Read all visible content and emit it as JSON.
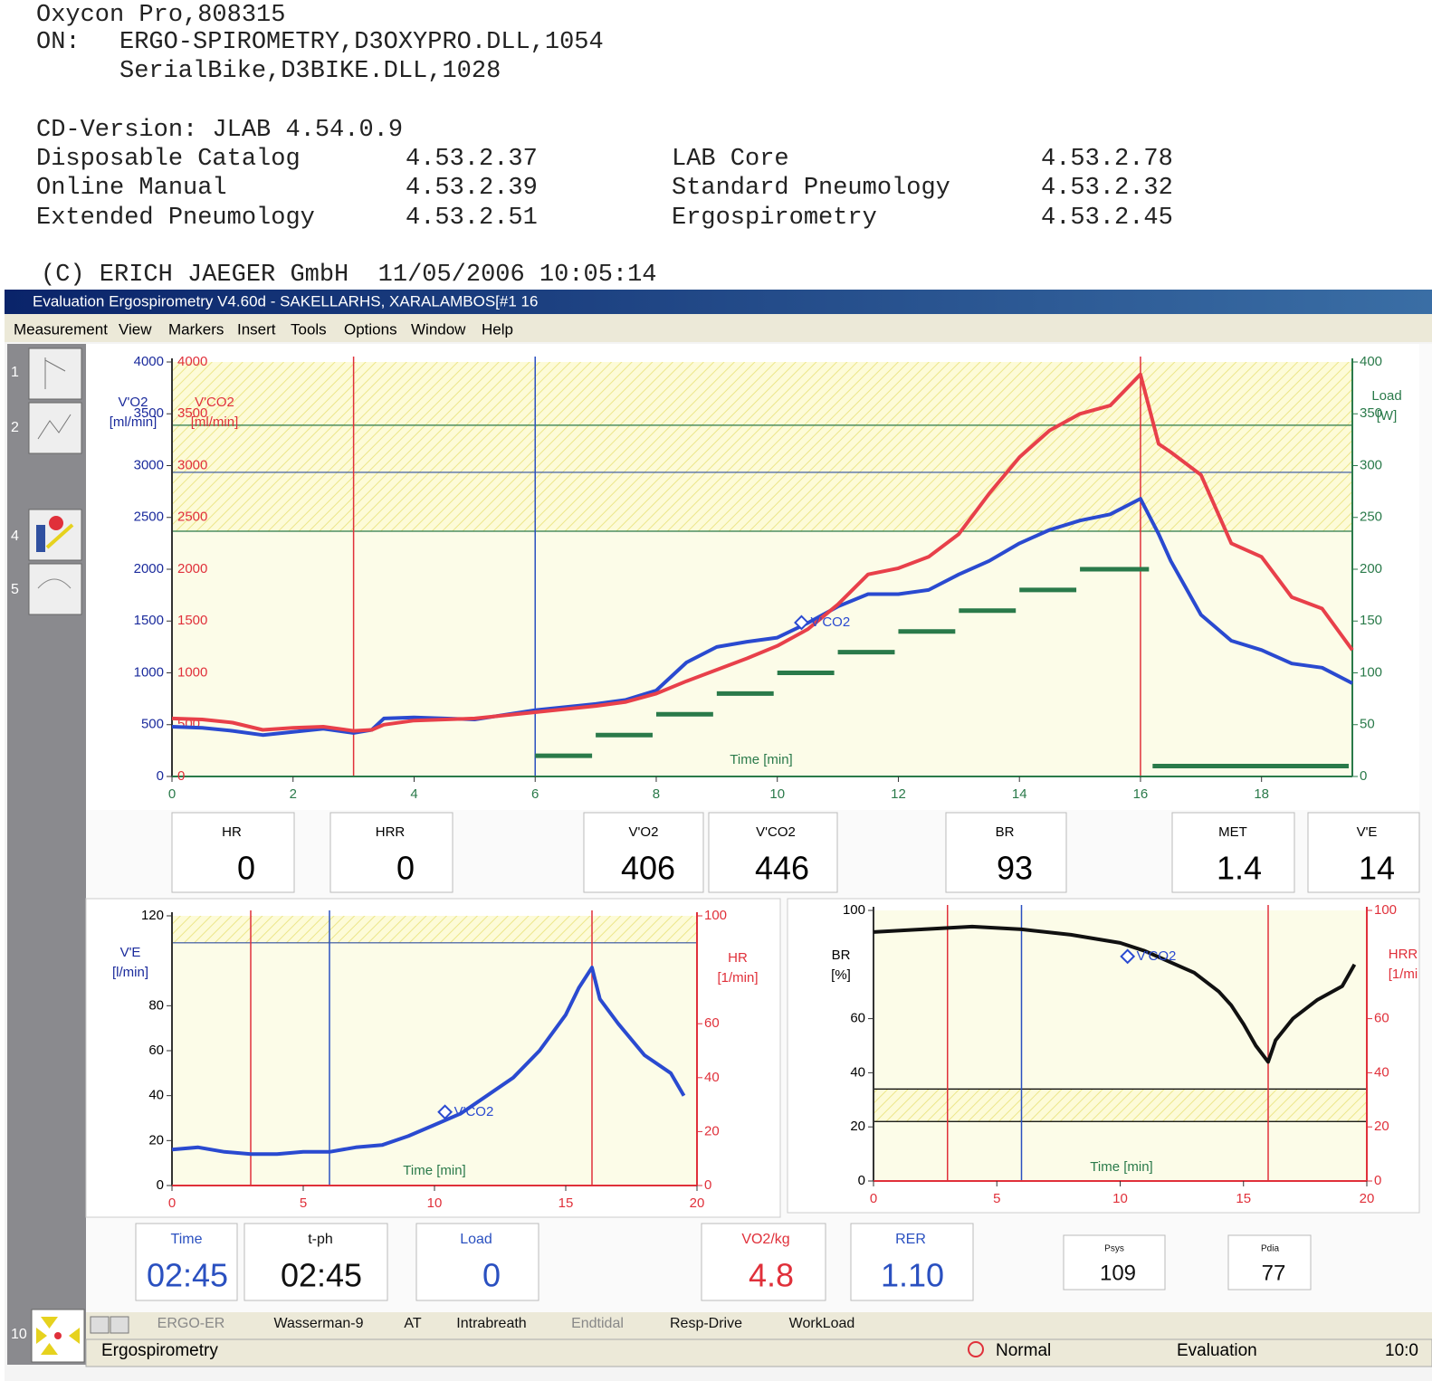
{
  "header": {
    "device": "Oxycon Pro,808315",
    "on_label": "ON:",
    "modules": [
      "ERGO-SPIROMETRY,D3OXYPRO.DLL,1054",
      "SerialBike,D3BIKE.DLL,1028"
    ],
    "cd_version": "CD-Version: JLAB 4.54.0.9",
    "versions": [
      [
        "Disposable Catalog",
        "4.53.2.37"
      ],
      [
        "Online Manual",
        "4.53.2.39"
      ],
      [
        "Extended Pneumology",
        "4.53.2.51"
      ],
      [
        "LAB Core",
        "4.53.2.78"
      ],
      [
        "Standard Pneumology",
        "4.53.2.32"
      ],
      [
        "Ergospirometry",
        "4.53.2.45"
      ]
    ],
    "copyright": "(C) ERICH JAEGER GmbH  11/05/2006 10:05:14"
  },
  "window": {
    "title": "Evaluation Ergospirometry  V4.60d - SAKELLARHS, XARALAMBOS[#1 16",
    "menu": [
      "Measurement",
      "View",
      "Markers",
      "Insert",
      "Tools",
      "Options",
      "Window",
      "Help"
    ]
  },
  "sidebar": [
    "1",
    "2",
    "4",
    "5",
    "10"
  ],
  "chart_data": [
    {
      "type": "line",
      "x_label": "Time [min]",
      "x_label_color": "#2a7a4a",
      "y_labels": [
        {
          "lines": [
            "V'O2",
            "[ml/min]"
          ],
          "color": "#1a2a9c"
        },
        {
          "lines": [
            "V'CO2",
            "[ml/min]"
          ],
          "color": "#e0303a"
        }
      ],
      "y2_label": {
        "lines": [
          "Load",
          "[W]"
        ],
        "color": "#2a7a4a"
      },
      "xlim": [
        0,
        19.5
      ],
      "xticks": [
        0,
        2,
        4,
        6,
        8,
        10,
        12,
        14,
        16,
        18
      ],
      "ylim": [
        0,
        4000
      ],
      "yticks": [
        0,
        500,
        1000,
        1500,
        2000,
        2500,
        3000,
        3500,
        4000
      ],
      "ytick_colors": [
        "#1a2a9c",
        "#e0303a"
      ],
      "y2lim": [
        0,
        400
      ],
      "y2ticks": [
        0,
        50,
        100,
        150,
        200,
        250,
        300,
        350,
        400
      ],
      "y2tick_color": "#2a7a4a",
      "band": [
        2367,
        4000
      ],
      "hlines": [
        {
          "value": 3390,
          "color": "#2a7a4a"
        },
        {
          "value": 2935,
          "color": "#3050a0"
        },
        {
          "value": 2367,
          "color": "#2a7a4a"
        }
      ],
      "vlines": [
        {
          "value": 3,
          "color": "#e0303a"
        },
        {
          "value": 6,
          "color": "#2a50c0"
        },
        {
          "value": 16,
          "color": "#e0303a"
        }
      ],
      "series": [
        {
          "color": "#2a4ad0",
          "x": [
            0,
            0.5,
            1,
            1.5,
            2,
            2.5,
            3,
            3.3,
            3.5,
            4,
            5,
            6,
            7,
            7.5,
            8,
            8.5,
            9,
            9.5,
            10,
            10.5,
            11,
            11.5,
            12,
            12.5,
            13,
            13.5,
            14,
            14.5,
            15,
            15.5,
            16,
            16.3,
            16.5,
            17,
            17.5,
            18,
            18.5,
            19,
            19.5
          ],
          "values": [
            480,
            470,
            440,
            400,
            430,
            460,
            420,
            450,
            560,
            570,
            550,
            640,
            700,
            740,
            830,
            1100,
            1250,
            1300,
            1340,
            1480,
            1640,
            1760,
            1760,
            1800,
            1950,
            2080,
            2250,
            2380,
            2470,
            2530,
            2680,
            2340,
            2080,
            1560,
            1310,
            1220,
            1090,
            1050,
            900
          ]
        },
        {
          "color": "#e8404a",
          "x": [
            0,
            0.5,
            1,
            1.5,
            2,
            2.5,
            3,
            3.3,
            3.5,
            4,
            5,
            6,
            7,
            7.5,
            8,
            8.5,
            9,
            9.5,
            10,
            10.5,
            11,
            11.5,
            12,
            12.5,
            13,
            13.5,
            14,
            14.5,
            15,
            15.5,
            16,
            16.3,
            16.5,
            17,
            17.5,
            18,
            18.5,
            19,
            19.5
          ],
          "values": [
            560,
            550,
            520,
            450,
            470,
            480,
            440,
            450,
            500,
            540,
            560,
            620,
            680,
            720,
            800,
            920,
            1030,
            1140,
            1260,
            1420,
            1660,
            1950,
            2010,
            2120,
            2340,
            2730,
            3080,
            3340,
            3500,
            3580,
            3880,
            3210,
            3130,
            2910,
            2250,
            2120,
            1730,
            1620,
            1220
          ]
        },
        {
          "color": "#2a7a4a",
          "axis": "y2",
          "step": true,
          "x": [
            6,
            7,
            8,
            9,
            10,
            11,
            12,
            13,
            14,
            15,
            16.2
          ],
          "values": [
            20,
            40,
            60,
            80,
            100,
            120,
            140,
            160,
            180,
            200,
            10
          ]
        }
      ],
      "annotation": {
        "text": "V'CO2",
        "x": 10.4,
        "y": 1485
      }
    },
    {
      "type": "line",
      "x_label": "Time [min]",
      "x_label_color": "#2a7a4a",
      "y_labels": [
        {
          "lines": [
            "V'E",
            "[l/min]"
          ],
          "color": "#1a2a9c"
        }
      ],
      "y2_label": {
        "lines": [
          "HR",
          "[1/min]"
        ],
        "color": "#e0303a"
      },
      "xlim": [
        0,
        20
      ],
      "xticks": [
        0,
        5,
        10,
        15,
        20
      ],
      "ylim": [
        0,
        120
      ],
      "yticks": [
        0,
        20,
        40,
        60,
        80,
        120
      ],
      "ytick_colors": [
        "#000000"
      ],
      "y2lim": [
        0,
        100
      ],
      "y2ticks": [
        0,
        20,
        40,
        60,
        100
      ],
      "y2tick_color": "#e0303a",
      "band": [
        108,
        120
      ],
      "hlines": [
        {
          "value": 108,
          "color": "#3050a0"
        }
      ],
      "vlines": [
        {
          "value": 3,
          "color": "#e0303a"
        },
        {
          "value": 6,
          "color": "#2a50c0"
        },
        {
          "value": 16,
          "color": "#e0303a"
        }
      ],
      "series": [
        {
          "color": "#2a4ad0",
          "x": [
            0,
            1,
            2,
            3,
            4,
            5,
            6,
            7,
            8,
            9,
            10,
            11,
            12,
            13,
            14,
            15,
            15.5,
            16,
            16.3,
            17,
            18,
            19,
            19.5
          ],
          "values": [
            16,
            17,
            15,
            14,
            14,
            15,
            15,
            17,
            18,
            22,
            27,
            32,
            40,
            48,
            60,
            76,
            88,
            97,
            83,
            72,
            58,
            50,
            40
          ]
        }
      ],
      "annotation": {
        "text": "V'CO2",
        "x": 10.4,
        "y": 32.7
      }
    },
    {
      "type": "line",
      "x_label": "Time [min]",
      "x_label_color": "#2a7a4a",
      "y_labels": [
        {
          "lines": [
            "BR",
            "[%]"
          ],
          "color": "#000000"
        }
      ],
      "y2_label": {
        "lines": [
          "HRR",
          "[1/mi"
        ],
        "color": "#e0303a"
      },
      "xlim": [
        0,
        20
      ],
      "xticks": [
        0,
        5,
        10,
        15,
        20
      ],
      "ylim": [
        0,
        100
      ],
      "yticks": [
        0,
        20,
        40,
        60,
        100
      ],
      "ytick_colors": [
        "#000000"
      ],
      "y2lim": [
        0,
        100
      ],
      "y2ticks": [
        0,
        20,
        40,
        60,
        100
      ],
      "y2tick_color": "#e0303a",
      "band": [
        22,
        34
      ],
      "hlines": [
        {
          "value": 34,
          "color": "#000000"
        },
        {
          "value": 22,
          "color": "#000000"
        }
      ],
      "vlines": [
        {
          "value": 3,
          "color": "#e0303a"
        },
        {
          "value": 6,
          "color": "#2a50c0"
        },
        {
          "value": 16,
          "color": "#e0303a"
        }
      ],
      "series": [
        {
          "color": "#111111",
          "x": [
            0,
            2,
            4,
            6,
            8,
            10,
            11,
            12,
            13,
            14,
            14.5,
            15,
            15.5,
            16,
            16.3,
            17,
            18,
            19,
            19.5
          ],
          "values": [
            92,
            93,
            94,
            93,
            91,
            88,
            85,
            81,
            77,
            70,
            65,
            58,
            50,
            44,
            52,
            60,
            67,
            72,
            80
          ]
        }
      ],
      "annotation": {
        "text": "V'CO2",
        "x": 10.3,
        "y": 83
      }
    }
  ],
  "readouts_top": [
    {
      "label": "HR",
      "value": "0"
    },
    {
      "label": "HRR",
      "value": "0"
    },
    {
      "label": "V'O2",
      "value": "406"
    },
    {
      "label": "V'CO2",
      "value": "446"
    },
    {
      "label": "BR",
      "value": "93"
    },
    {
      "label": "MET",
      "value": "1.4"
    },
    {
      "label": "V'E",
      "value": "14"
    }
  ],
  "readouts_bottom": [
    {
      "label": "Time",
      "value": "02:45",
      "color": "#2a50c0"
    },
    {
      "label": "t-ph",
      "value": "02:45",
      "color": "#111111"
    },
    {
      "label": "Load",
      "value": "0",
      "color": "#2a50c0"
    },
    {
      "label": "VO2/kg",
      "value": "4.8",
      "color": "#e0303a"
    },
    {
      "label": "RER",
      "value": "1.10",
      "color": "#2a50c0"
    },
    {
      "label": "Psys",
      "value": "109",
      "color": "#111111"
    },
    {
      "label": "Pdia",
      "value": "77",
      "color": "#111111"
    }
  ],
  "tabs": [
    "ERGO-ER",
    "Wasserman-9",
    "AT",
    "Intrabreath",
    "Endtidal",
    "Resp-Drive",
    "WorkLoad"
  ],
  "status": [
    "Ergospirometry",
    "Normal",
    "Evaluation",
    "10:0"
  ]
}
